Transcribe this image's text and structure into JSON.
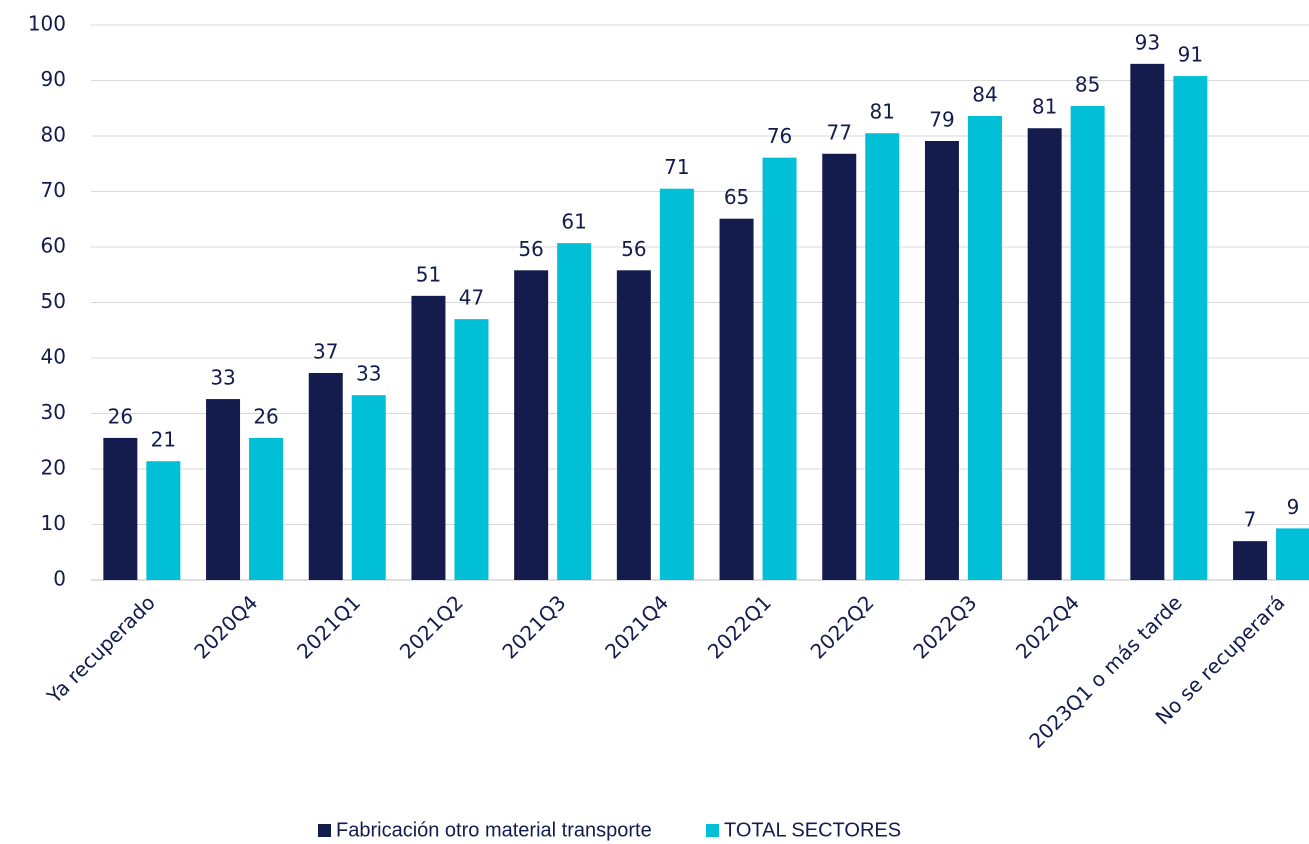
{
  "chart_data": {
    "type": "bar",
    "categories": [
      "Ya recuperado",
      "2020Q4",
      "2021Q1",
      "2021Q2",
      "2021Q3",
      "2021Q4",
      "2022Q1",
      "2022Q2",
      "2022Q3",
      "2022Q4",
      "2023Q1 o más tarde",
      "No se recuperará"
    ],
    "series": [
      {
        "name": "Fabricación otro material transporte",
        "color": "#141b4d",
        "values": [
          25.6,
          32.6,
          37.3,
          51.2,
          55.8,
          55.8,
          65.1,
          76.8,
          79.1,
          81.4,
          93.0,
          7.0
        ],
        "value_labels": [
          "26",
          "33",
          "37",
          "51",
          "56",
          "56",
          "65",
          "77",
          "79",
          "81",
          "93",
          "7"
        ]
      },
      {
        "name": "TOTAL SECTORES",
        "color": "#00bfd6",
        "values": [
          21.4,
          25.6,
          33.3,
          47.0,
          60.7,
          70.5,
          76.1,
          80.5,
          83.6,
          85.4,
          90.8,
          9.3
        ],
        "value_labels": [
          "21",
          "26",
          "33",
          "47",
          "61",
          "71",
          "76",
          "81",
          "84",
          "85",
          "91",
          "9"
        ]
      }
    ],
    "ylim": [
      0,
      100
    ],
    "yticks": [
      0,
      10,
      20,
      30,
      40,
      50,
      60,
      70,
      80,
      90,
      100
    ],
    "grid": true,
    "legend": "bottom"
  }
}
